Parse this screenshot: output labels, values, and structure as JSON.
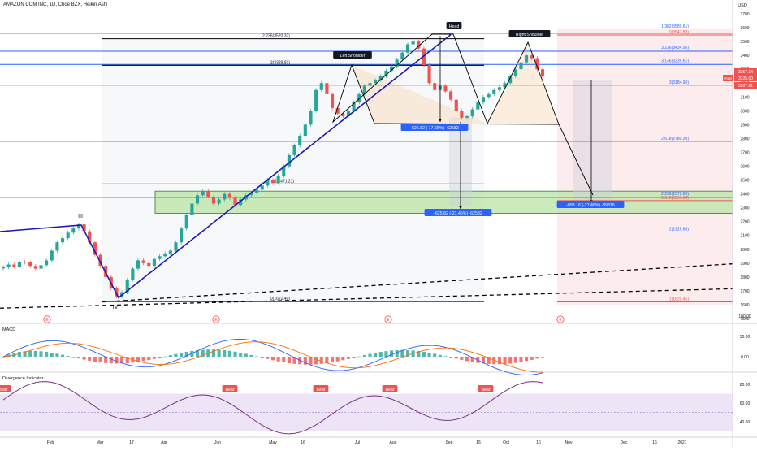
{
  "header": {
    "symbol_title": "AMAZON COM INC, 1D, Cboe BZX, Heikin Ashi",
    "currency": "USD"
  },
  "colors": {
    "up": "#26a69a",
    "down": "#ef5350",
    "macd": "#2962ff",
    "signal": "#ff6d00",
    "rsi": "#7e2f88",
    "fib": "#2962ff",
    "zone": "#b9e4a6"
  },
  "chart_data": [
    {
      "type": "candlestick",
      "title": "AMAZON COM INC, 1D, Cboe BZX, Heikin Ashi",
      "y_axis_ticks": [
        1500,
        1600,
        1700,
        1800,
        1900,
        2000,
        2100,
        2200,
        2300,
        2400,
        2500,
        2600,
        2700,
        2800,
        2900,
        3000,
        3100,
        3200,
        3300,
        3400,
        3500,
        3600,
        3700
      ],
      "x_axis_ticks": [
        "Feb",
        "Mar",
        "17",
        "Apr",
        "Jun",
        "May",
        "16",
        "Jul",
        "Aug",
        "Sep",
        "16",
        "Oct",
        "16",
        "Nov",
        "Dec",
        "16",
        "2021"
      ],
      "ylim": [
        1480,
        3760
      ],
      "price_labels": [
        {
          "text": "3257.14",
          "color": "#ef5350"
        },
        {
          "text": "3225.00",
          "color": "#ef5350",
          "tag": "Post"
        },
        {
          "text": "3207.21",
          "color": "#ef5350"
        }
      ],
      "close": [
        1870,
        1890,
        1875,
        1910,
        1905,
        1880,
        1860,
        1885,
        1920,
        1990,
        2050,
        2080,
        2120,
        2150,
        2180,
        2130,
        2050,
        1960,
        1880,
        1800,
        1720,
        1660,
        1690,
        1780,
        1860,
        1920,
        1900,
        1880,
        1930,
        1950,
        1970,
        1990,
        2050,
        2150,
        2250,
        2330,
        2390,
        2420,
        2380,
        2330,
        2360,
        2400,
        2370,
        2320,
        2360,
        2390,
        2410,
        2430,
        2460,
        2500,
        2480,
        2530,
        2600,
        2680,
        2750,
        2820,
        2900,
        3000,
        3150,
        3200,
        3120,
        3020,
        2980,
        2960,
        3000,
        3060,
        3120,
        3180,
        3200,
        3220,
        3250,
        3290,
        3320,
        3370,
        3420,
        3480,
        3500,
        3450,
        3330,
        3200,
        3150,
        3180,
        3140,
        3080,
        3000,
        2950,
        2960,
        3010,
        3060,
        3100,
        3120,
        3150,
        3170,
        3200,
        3250,
        3300,
        3350,
        3400,
        3380,
        3300,
        3250
      ],
      "annotations": [
        {
          "text": "III",
          "kind": "wave"
        },
        {
          "text": "IV",
          "kind": "wave"
        },
        {
          "text": "Left Shoulder",
          "kind": "label"
        },
        {
          "text": "Head",
          "kind": "label"
        },
        {
          "text": "Right Shoulder",
          "kind": "label"
        },
        {
          "text": "-625.82 (-17.65%) -62582",
          "kind": "measure"
        },
        {
          "text": "-625.82 (-21.45%) -62582",
          "kind": "measure"
        },
        {
          "text": "-893.16 (-27.46%) -89316",
          "kind": "measure"
        }
      ],
      "fib_left": [
        {
          "text": "2.236(3520.33)",
          "value": 3520.33
        },
        {
          "text": "2(3328.81)",
          "value": 3328.81
        },
        {
          "text": "1(2471.21)",
          "value": 2471.21
        },
        {
          "text": "0(1622.40)",
          "value": 1622.4
        }
      ],
      "fib_right": [
        {
          "text": "1.382(3589.61)",
          "value": 3589.61,
          "color": "#2962ff"
        },
        {
          "text": "0(3547.83)",
          "value": 3547.83,
          "color": "#ef5350"
        },
        {
          "text": "3.236(3434.95)",
          "value": 3434.95,
          "color": "#2962ff"
        },
        {
          "text": "3.146(3339.61)",
          "value": 3339.61,
          "color": "#2962ff"
        },
        {
          "text": "3(3184.96)",
          "value": 3184.96,
          "color": "#2962ff"
        },
        {
          "text": "2.618(2780.30)",
          "value": 2780.3,
          "color": "#2962ff"
        },
        {
          "text": "2.236(2379.69)",
          "value": 2379.69,
          "color": "#2962ff"
        },
        {
          "text": "0.618(2351.34)",
          "value": 2351.34,
          "color": "#ef5350"
        },
        {
          "text": "2(2125.66)",
          "value": 2125.66,
          "color": "#2962ff"
        },
        {
          "text": "1(1620.46)",
          "value": 1620.46,
          "color": "#ef5350"
        }
      ],
      "blue_levels": [
        3560,
        3430,
        3335,
        3185,
        2780,
        2375,
        2125
      ],
      "event_markers": [
        "E",
        "E",
        "E",
        "E"
      ]
    },
    {
      "type": "line",
      "title": "MACD",
      "y_axis_ticks": [
        100,
        50,
        0
      ],
      "series": [
        {
          "name": "MACD"
        },
        {
          "name": "Signal"
        }
      ]
    },
    {
      "type": "line",
      "title": "Divergence Indicator",
      "y_axis_ticks": [
        80,
        60,
        40
      ],
      "zones": [
        "Bear",
        "Bear",
        "Bear",
        "Bear",
        "Bear"
      ]
    }
  ]
}
